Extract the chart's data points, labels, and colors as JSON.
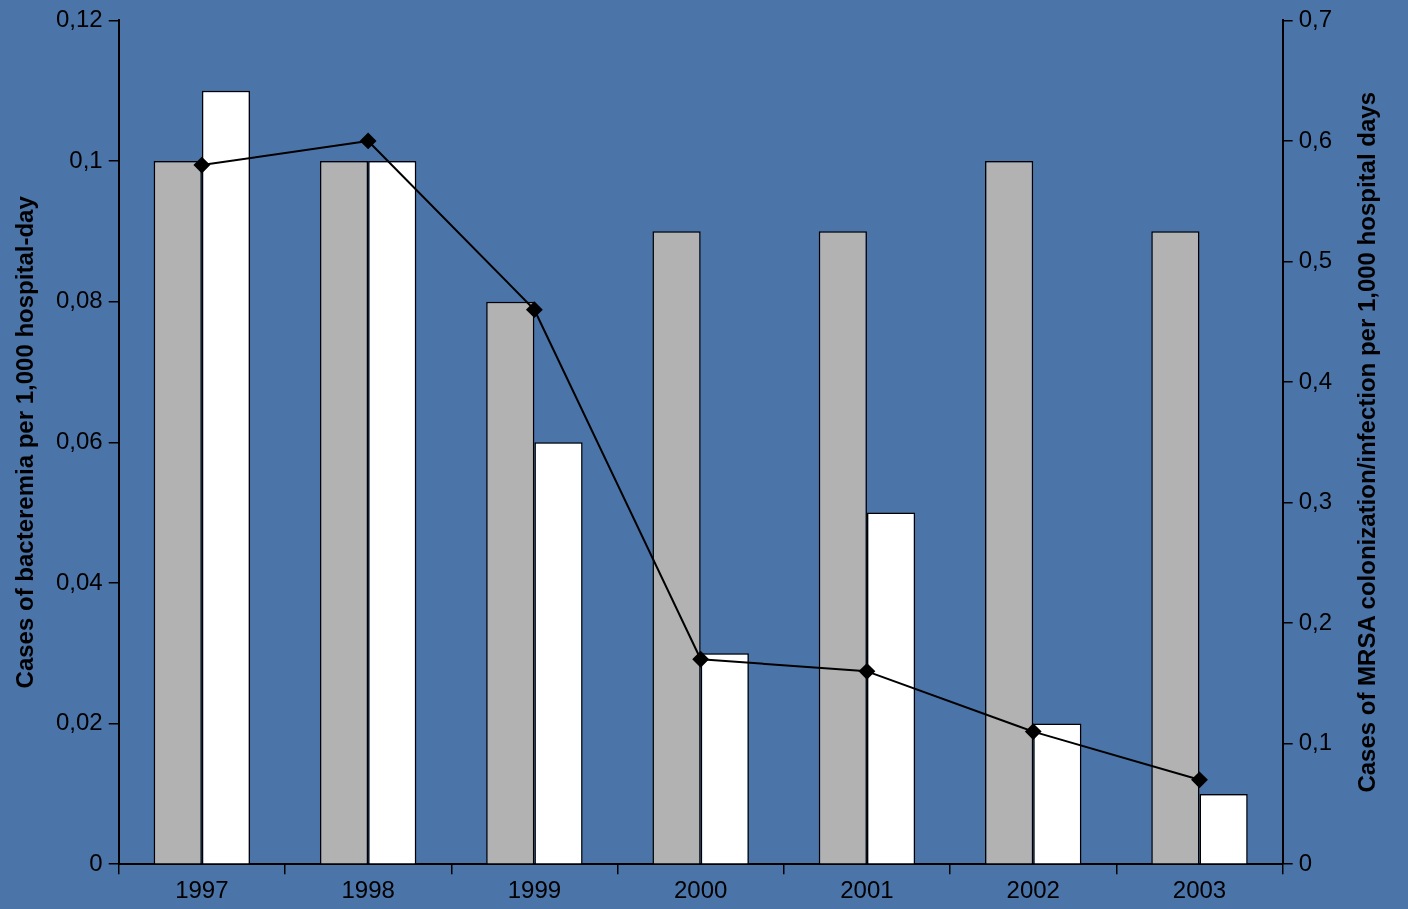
{
  "chart_data": {
    "type": "bar",
    "ylabel": "Cases of bacteremia per 1,000 hospital-day",
    "y2label": "Cases of MRSA colonization/infection per 1,000 hospital days",
    "categories": [
      "1997",
      "1998",
      "1999",
      "2000",
      "2001",
      "2002",
      "2003"
    ],
    "series": [
      {
        "color": "#b2b2b2",
        "values": [
          0.1,
          0.1,
          0.08,
          0.09,
          0.09,
          0.1,
          0.09
        ]
      },
      {
        "color": "#ffffff",
        "values": [
          0.11,
          0.1,
          0.06,
          0.03,
          0.05,
          0.02,
          0.01
        ]
      },
      {
        "type": "line",
        "axis": "y2",
        "color": "#000000",
        "marker": "diamond",
        "line_style": "solid",
        "values": [
          0.58,
          0.6,
          0.46,
          0.17,
          0.16,
          0.11,
          0.07
        ]
      }
    ],
    "ylim": [
      0,
      0.12
    ],
    "yticks": [
      0,
      {
        "value": 0.02,
        "label": "0,02"
      },
      {
        "value": 0.04,
        "label": "0,04"
      },
      {
        "value": 0.06,
        "label": "0,06"
      },
      {
        "value": 0.08,
        "label": "0,08"
      },
      {
        "value": 0.1,
        "label": "0,1"
      },
      {
        "value": 0.12,
        "label": "0,12"
      }
    ],
    "y2lim": [
      0,
      0.7
    ],
    "y2ticks": [
      0,
      {
        "value": 0.1,
        "label": "0,1"
      },
      {
        "value": 0.2,
        "label": "0,2"
      },
      {
        "value": 0.3,
        "label": "0,3"
      },
      {
        "value": 0.4,
        "label": "0,4"
      },
      {
        "value": 0.5,
        "label": "0,5"
      },
      {
        "value": 0.6,
        "label": "0,6"
      },
      {
        "value": 0.7,
        "label": "0,7"
      }
    ],
    "grid": false,
    "legend": false
  }
}
